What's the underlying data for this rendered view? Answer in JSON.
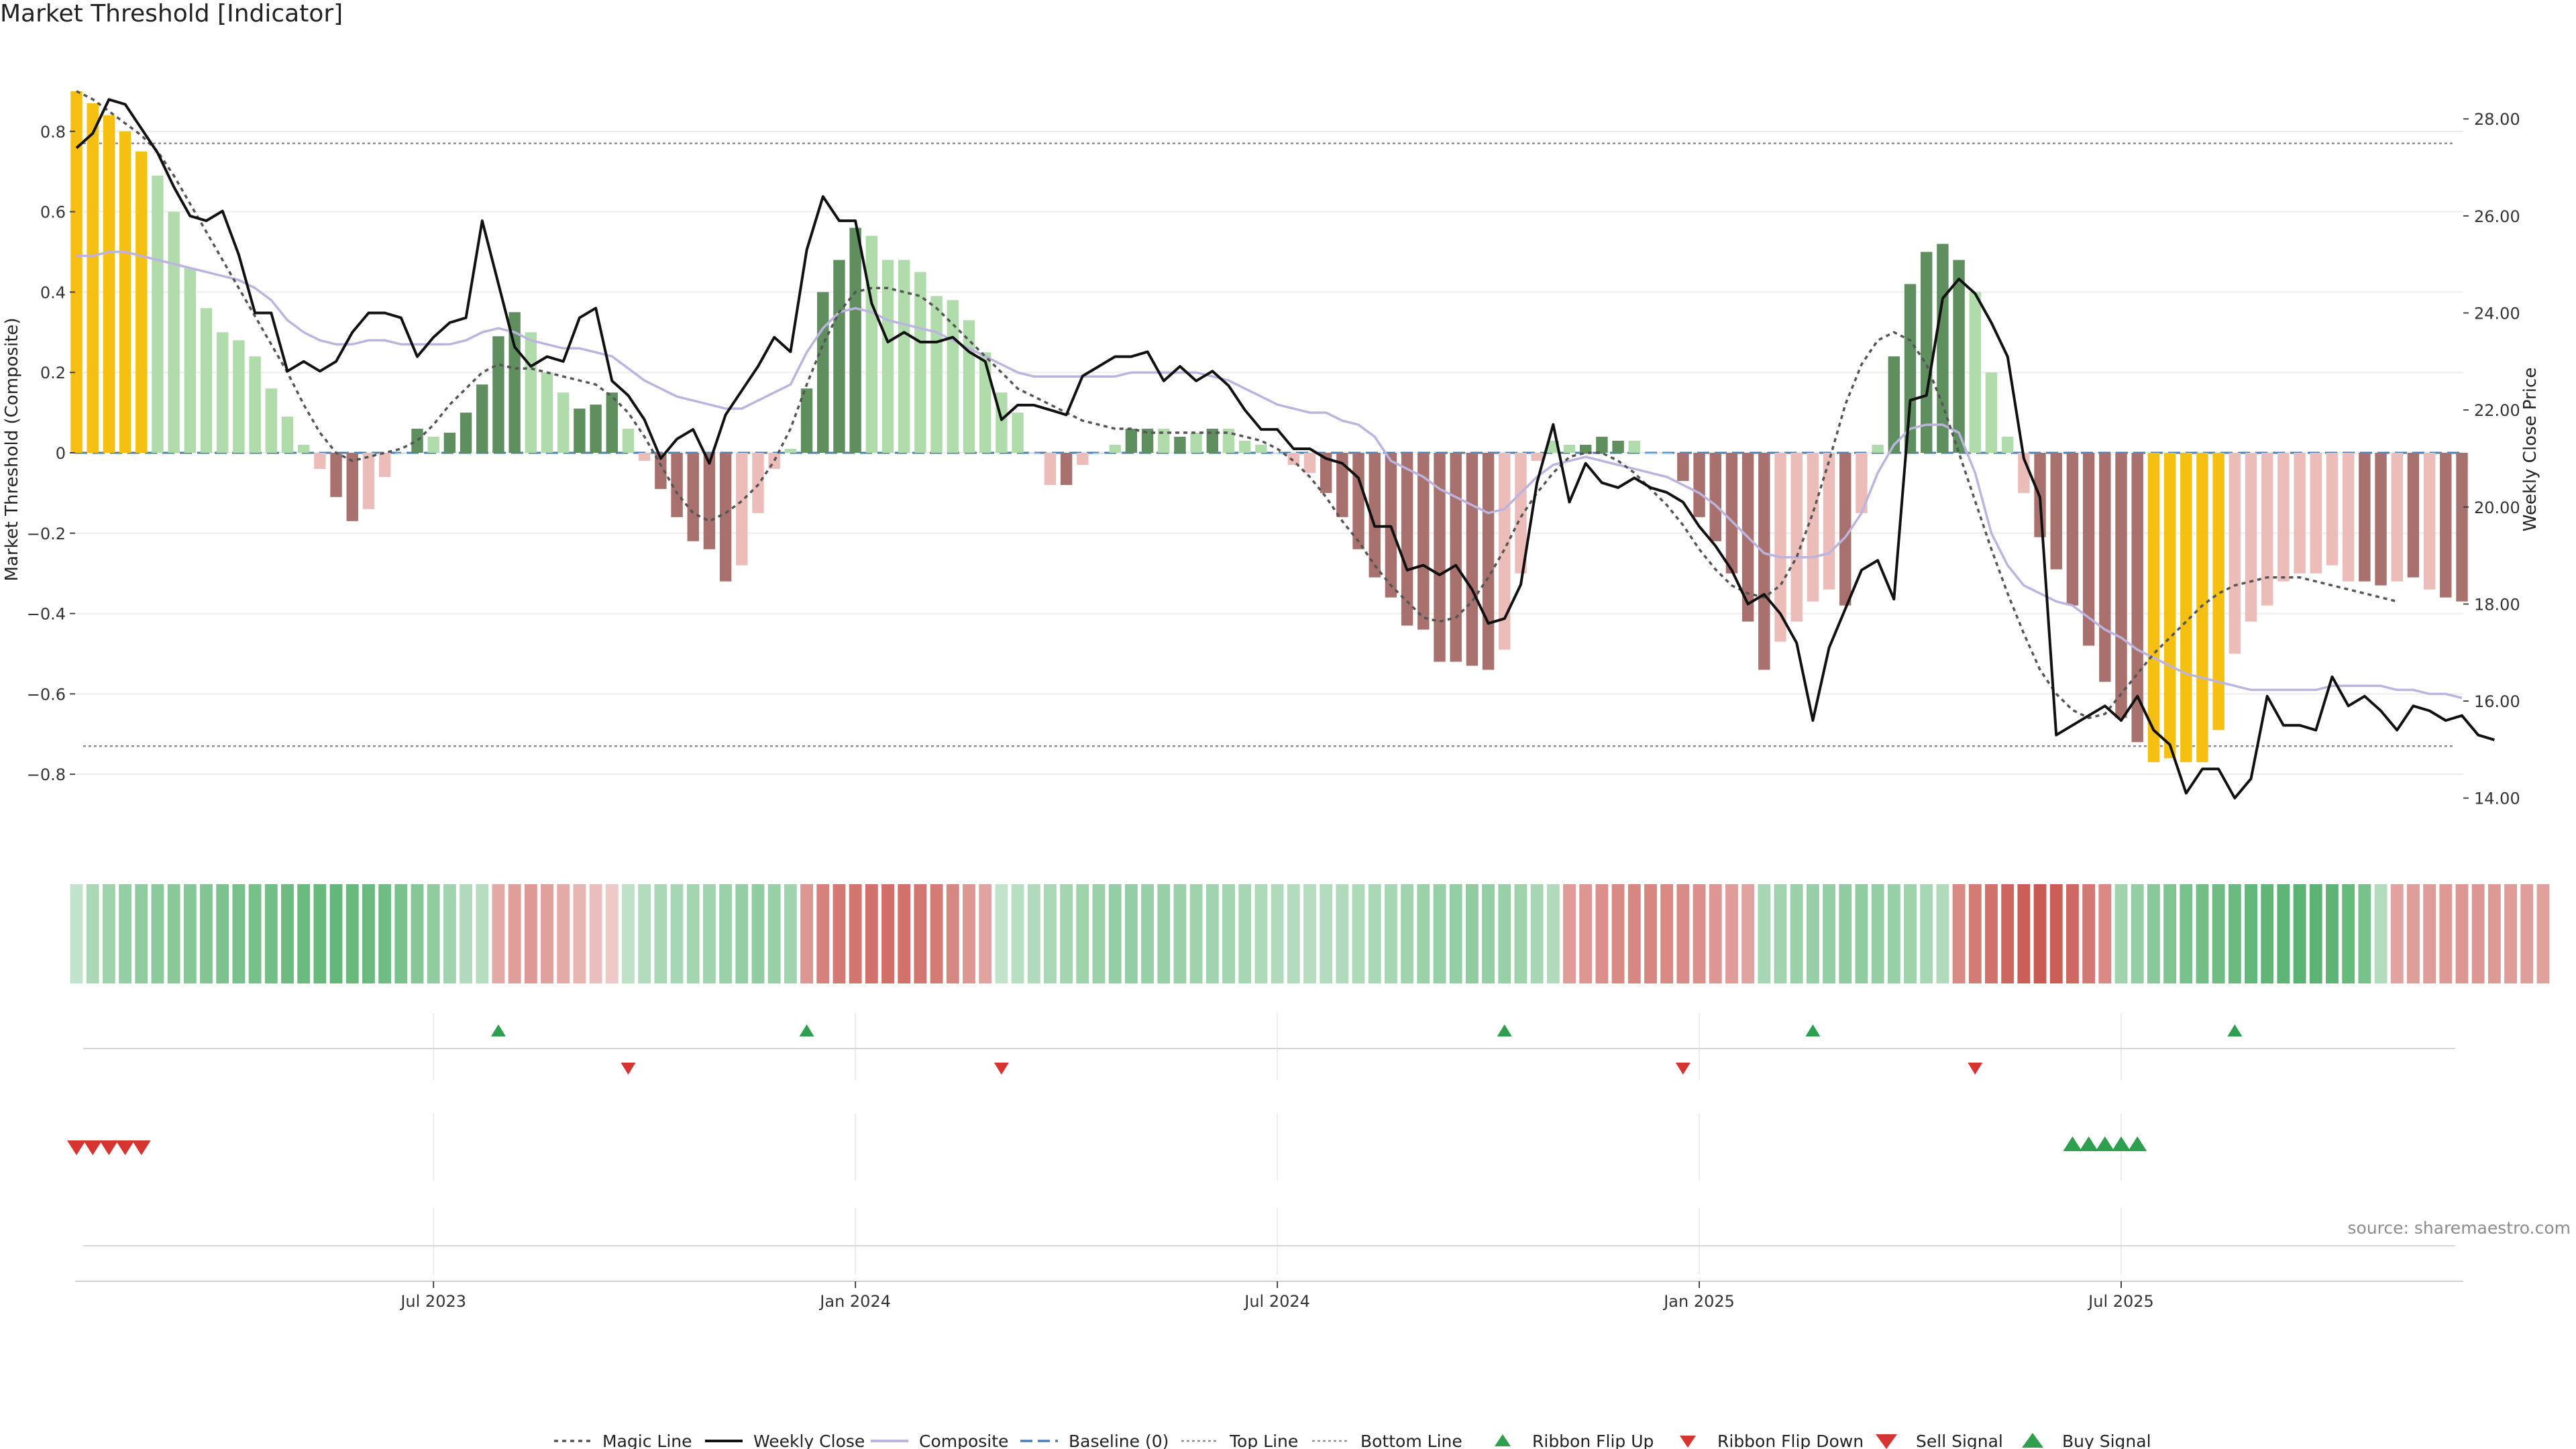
{
  "chart_data": {
    "type": "bar",
    "title": "Market Threshold [Indicator]",
    "ylabel": "Market Threshold (Composite)",
    "y2label": "Weekly Close Price",
    "source": "source: sharemaestro.com",
    "ylim": [
      -0.98,
      1.0
    ],
    "y2lim": [
      13.0,
      29.4
    ],
    "top_line": 0.77,
    "bottom_line": -0.73,
    "yticks": [
      "0.8",
      "0.6",
      "0.4",
      "0.2",
      "0",
      "−0.2",
      "−0.4",
      "−0.6",
      "−0.8"
    ],
    "yticks_values": [
      0.8,
      0.6,
      0.4,
      0.2,
      0,
      -0.2,
      -0.4,
      -0.6,
      -0.8
    ],
    "y2ticks": [
      "28.00",
      "26.00",
      "24.00",
      "22.00",
      "20.00",
      "18.00",
      "16.00",
      "14.00"
    ],
    "y2ticks_values": [
      28,
      26,
      24,
      22,
      20,
      18,
      16,
      14
    ],
    "xticks": [
      "Jul 2023",
      "Jan 2024",
      "Jul 2024",
      "Jan 2025",
      "Jul 2025"
    ],
    "xticks_week": [
      22,
      48,
      74,
      100,
      126
    ],
    "grid": true,
    "legend_position": "bottom-center",
    "colors": {
      "gold": "#f5c011",
      "dark_green": "#5f8f5f",
      "light_green": "#b0dbab",
      "dark_red": "#a8716d",
      "light_red": "#ecbcb8",
      "close": "#111111",
      "composite": "#bcb4e0",
      "magic": "#555555",
      "baseline": "#4a7fb5",
      "guide": "#999999",
      "flip_up": "#2e9e4f",
      "flip_down": "#d63331"
    },
    "bars": [
      0.9,
      0.87,
      0.84,
      0.8,
      0.75,
      0.69,
      0.6,
      0.46,
      0.36,
      0.3,
      0.28,
      0.24,
      0.16,
      0.09,
      0.02,
      -0.04,
      -0.11,
      -0.17,
      -0.14,
      -0.06,
      0.0,
      0.06,
      0.04,
      0.05,
      0.1,
      0.17,
      0.29,
      0.35,
      0.3,
      0.2,
      0.15,
      0.11,
      0.12,
      0.15,
      0.06,
      -0.02,
      -0.09,
      -0.16,
      -0.22,
      -0.24,
      -0.32,
      -0.28,
      -0.15,
      -0.04,
      0.01,
      0.16,
      0.4,
      0.48,
      0.56,
      0.54,
      0.48,
      0.48,
      0.45,
      0.39,
      0.38,
      0.33,
      0.25,
      0.15,
      0.1,
      0.0,
      -0.08,
      -0.08,
      -0.03,
      0.0,
      0.02,
      0.06,
      0.06,
      0.06,
      0.04,
      0.05,
      0.06,
      0.06,
      0.03,
      0.02,
      0.0,
      -0.03,
      -0.05,
      -0.1,
      -0.16,
      -0.24,
      -0.31,
      -0.36,
      -0.43,
      -0.44,
      -0.52,
      -0.52,
      -0.53,
      -0.54,
      -0.49,
      -0.3,
      -0.02,
      0.03,
      0.02,
      0.02,
      0.04,
      0.03,
      0.03,
      0.0,
      0.0,
      -0.07,
      -0.16,
      -0.22,
      -0.3,
      -0.42,
      -0.54,
      -0.47,
      -0.42,
      -0.37,
      -0.34,
      -0.38,
      -0.15,
      0.02,
      0.24,
      0.42,
      0.5,
      0.52,
      0.48,
      0.4,
      0.2,
      0.04,
      -0.1,
      -0.21,
      -0.29,
      -0.38,
      -0.48,
      -0.57,
      -0.66,
      -0.72,
      -0.77,
      -0.76,
      -0.77,
      -0.77,
      -0.69,
      -0.5,
      -0.42,
      -0.38,
      -0.32,
      -0.3,
      -0.3,
      -0.28,
      -0.32,
      -0.32,
      -0.33,
      -0.32,
      -0.31,
      -0.34,
      -0.36,
      -0.37
    ],
    "bar_kinds": [
      "gold",
      "gold",
      "gold",
      "gold",
      "gold",
      "lg",
      "lg",
      "lg",
      "lg",
      "lg",
      "lg",
      "lg",
      "lg",
      "lg",
      "lg",
      "lr",
      "dr",
      "dr",
      "lr",
      "lr",
      "lr",
      "dg",
      "lg",
      "dg",
      "dg",
      "dg",
      "dg",
      "dg",
      "lg",
      "lg",
      "lg",
      "dg",
      "dg",
      "dg",
      "lg",
      "lr",
      "dr",
      "dr",
      "dr",
      "dr",
      "dr",
      "lr",
      "lr",
      "lr",
      "lg",
      "dg",
      "dg",
      "dg",
      "dg",
      "lg",
      "lg",
      "lg",
      "lg",
      "lg",
      "lg",
      "lg",
      "lg",
      "lg",
      "lg",
      "lr",
      "lr",
      "dr",
      "lr",
      "lr",
      "lg",
      "dg",
      "dg",
      "lg",
      "dg",
      "lg",
      "dg",
      "lg",
      "lg",
      "lg",
      "lr",
      "lr",
      "lr",
      "dr",
      "dr",
      "dr",
      "dr",
      "dr",
      "dr",
      "dr",
      "dr",
      "dr",
      "dr",
      "dr",
      "lr",
      "lr",
      "lr",
      "lg",
      "lg",
      "dg",
      "dg",
      "dg",
      "lg",
      "lr",
      "lr",
      "dr",
      "dr",
      "dr",
      "dr",
      "dr",
      "dr",
      "lr",
      "lr",
      "lr",
      "lr",
      "dr",
      "lr",
      "lg",
      "dg",
      "dg",
      "dg",
      "dg",
      "dg",
      "lg",
      "lg",
      "lg",
      "lr",
      "dr",
      "dr",
      "dr",
      "dr",
      "dr",
      "dr",
      "dr",
      "gold",
      "gold",
      "gold",
      "gold",
      "gold",
      "lr",
      "lr",
      "lr",
      "lr",
      "lr",
      "lr",
      "lr",
      "lr",
      "dr",
      "dr",
      "lr",
      "dr",
      "lr",
      "dr",
      "dr",
      "dr"
    ],
    "close": [
      27.4,
      27.7,
      28.4,
      28.3,
      27.8,
      27.3,
      26.6,
      26.0,
      25.9,
      26.1,
      25.2,
      24.0,
      24.0,
      22.8,
      23.0,
      22.8,
      23.0,
      23.6,
      24.0,
      24.0,
      23.9,
      23.1,
      23.5,
      23.8,
      23.9,
      25.9,
      24.6,
      23.3,
      22.9,
      23.1,
      23.0,
      23.9,
      24.1,
      22.6,
      22.3,
      21.8,
      21.0,
      21.4,
      21.6,
      20.9,
      21.9,
      22.4,
      22.9,
      23.5,
      23.2,
      25.3,
      26.4,
      25.9,
      25.9,
      24.2,
      23.4,
      23.6,
      23.4,
      23.4,
      23.5,
      23.2,
      23.0,
      21.8,
      22.1,
      22.1,
      22.0,
      21.9,
      22.7,
      22.9,
      23.1,
      23.1,
      23.2,
      22.6,
      22.9,
      22.6,
      22.8,
      22.5,
      22.0,
      21.6,
      21.6,
      21.2,
      21.2,
      21.0,
      20.9,
      20.6,
      19.6,
      19.6,
      18.7,
      18.8,
      18.6,
      18.8,
      18.3,
      17.6,
      17.7,
      18.4,
      20.5,
      21.7,
      20.1,
      20.9,
      20.5,
      20.4,
      20.6,
      20.4,
      20.3,
      20.1,
      19.6,
      19.2,
      18.7,
      18.0,
      18.2,
      17.8,
      17.2,
      15.6,
      17.1,
      17.9,
      18.7,
      18.9,
      18.1,
      22.2,
      22.3,
      24.3,
      24.7,
      24.4,
      23.8,
      23.1,
      21.0,
      20.2,
      15.3,
      15.5,
      15.7,
      15.9,
      15.6,
      16.1,
      15.4,
      15.1,
      14.1,
      14.6,
      14.6,
      14.0,
      14.4,
      16.1,
      15.5,
      15.5,
      15.4,
      16.5,
      15.9,
      16.1,
      15.8,
      15.4,
      15.9,
      15.8,
      15.6,
      15.7,
      15.3,
      15.2
    ],
    "composite": [
      0.49,
      0.49,
      0.5,
      0.5,
      0.49,
      0.48,
      0.47,
      0.46,
      0.45,
      0.44,
      0.43,
      0.41,
      0.38,
      0.33,
      0.3,
      0.28,
      0.27,
      0.27,
      0.28,
      0.28,
      0.27,
      0.27,
      0.27,
      0.27,
      0.28,
      0.3,
      0.31,
      0.3,
      0.28,
      0.27,
      0.26,
      0.26,
      0.25,
      0.24,
      0.21,
      0.18,
      0.16,
      0.14,
      0.13,
      0.12,
      0.11,
      0.11,
      0.13,
      0.15,
      0.17,
      0.25,
      0.31,
      0.35,
      0.36,
      0.35,
      0.33,
      0.32,
      0.31,
      0.3,
      0.28,
      0.26,
      0.24,
      0.22,
      0.2,
      0.19,
      0.19,
      0.19,
      0.19,
      0.19,
      0.19,
      0.2,
      0.2,
      0.2,
      0.2,
      0.2,
      0.19,
      0.18,
      0.16,
      0.14,
      0.12,
      0.11,
      0.1,
      0.1,
      0.08,
      0.07,
      0.04,
      -0.02,
      -0.04,
      -0.06,
      -0.09,
      -0.11,
      -0.13,
      -0.15,
      -0.14,
      -0.1,
      -0.06,
      -0.03,
      -0.02,
      -0.01,
      -0.02,
      -0.03,
      -0.04,
      -0.05,
      -0.06,
      -0.08,
      -0.1,
      -0.13,
      -0.17,
      -0.21,
      -0.25,
      -0.26,
      -0.26,
      -0.26,
      -0.25,
      -0.21,
      -0.15,
      -0.05,
      0.02,
      0.06,
      0.07,
      0.07,
      0.05,
      -0.05,
      -0.2,
      -0.28,
      -0.33,
      -0.35,
      -0.37,
      -0.38,
      -0.41,
      -0.44,
      -0.46,
      -0.49,
      -0.51,
      -0.53,
      -0.55,
      -0.56,
      -0.57,
      -0.58,
      -0.59,
      -0.59,
      -0.59,
      -0.59,
      -0.59,
      -0.58,
      -0.58,
      -0.58,
      -0.58,
      -0.59,
      -0.59,
      -0.6,
      -0.6,
      -0.61
    ],
    "magic": [
      0.9,
      0.88,
      0.85,
      0.82,
      0.79,
      0.75,
      0.69,
      0.62,
      0.55,
      0.48,
      0.41,
      0.34,
      0.27,
      0.2,
      0.12,
      0.05,
      0.0,
      -0.02,
      -0.01,
      0.0,
      0.01,
      0.03,
      0.07,
      0.12,
      0.16,
      0.2,
      0.22,
      0.21,
      0.21,
      0.2,
      0.19,
      0.18,
      0.17,
      0.14,
      0.1,
      0.04,
      -0.03,
      -0.1,
      -0.15,
      -0.17,
      -0.15,
      -0.12,
      -0.08,
      -0.02,
      0.06,
      0.17,
      0.27,
      0.35,
      0.4,
      0.41,
      0.41,
      0.4,
      0.39,
      0.36,
      0.32,
      0.28,
      0.24,
      0.2,
      0.16,
      0.14,
      0.12,
      0.1,
      0.08,
      0.07,
      0.06,
      0.06,
      0.05,
      0.05,
      0.05,
      0.05,
      0.05,
      0.05,
      0.04,
      0.03,
      0.01,
      -0.02,
      -0.06,
      -0.11,
      -0.17,
      -0.22,
      -0.28,
      -0.33,
      -0.37,
      -0.41,
      -0.42,
      -0.41,
      -0.37,
      -0.31,
      -0.24,
      -0.16,
      -0.1,
      -0.05,
      -0.01,
      0.0,
      0.0,
      -0.02,
      -0.05,
      -0.09,
      -0.13,
      -0.18,
      -0.24,
      -0.29,
      -0.33,
      -0.35,
      -0.36,
      -0.33,
      -0.26,
      -0.15,
      -0.02,
      0.12,
      0.22,
      0.28,
      0.3,
      0.28,
      0.22,
      0.12,
      0.0,
      -0.12,
      -0.24,
      -0.35,
      -0.45,
      -0.54,
      -0.6,
      -0.64,
      -0.66,
      -0.65,
      -0.6,
      -0.55,
      -0.5,
      -0.46,
      -0.42,
      -0.38,
      -0.35,
      -0.33,
      -0.32,
      -0.31,
      -0.31,
      -0.31,
      -0.32,
      -0.33,
      -0.34,
      -0.35,
      -0.36,
      -0.37
    ],
    "ribbon": [
      0.12,
      0.28,
      0.36,
      0.42,
      0.46,
      0.48,
      0.5,
      0.52,
      0.55,
      0.58,
      0.6,
      0.62,
      0.65,
      0.68,
      0.7,
      0.72,
      0.74,
      0.72,
      0.7,
      0.66,
      0.6,
      0.52,
      0.44,
      0.34,
      0.24,
      0.2,
      -0.36,
      -0.44,
      -0.48,
      -0.42,
      -0.35,
      -0.28,
      -0.2,
      -0.12,
      0.14,
      0.22,
      0.28,
      0.3,
      0.32,
      0.34,
      0.38,
      0.42,
      0.44,
      0.4,
      0.34,
      -0.5,
      -0.66,
      -0.72,
      -0.75,
      -0.78,
      -0.8,
      -0.78,
      -0.74,
      -0.7,
      -0.62,
      -0.5,
      -0.4,
      0.12,
      0.18,
      0.24,
      0.28,
      0.32,
      0.36,
      0.38,
      0.42,
      0.42,
      0.4,
      0.4,
      0.38,
      0.36,
      0.34,
      0.32,
      0.3,
      0.26,
      0.24,
      0.22,
      0.2,
      0.22,
      0.24,
      0.26,
      0.28,
      0.3,
      0.34,
      0.38,
      0.4,
      0.42,
      0.44,
      0.42,
      0.4,
      0.36,
      0.3,
      0.24,
      -0.46,
      -0.5,
      -0.55,
      -0.6,
      -0.62,
      -0.62,
      -0.6,
      -0.58,
      -0.55,
      -0.5,
      -0.45,
      -0.4,
      0.3,
      0.34,
      0.38,
      0.4,
      0.42,
      0.44,
      0.46,
      0.42,
      0.4,
      0.36,
      0.3,
      0.24,
      -0.6,
      -0.7,
      -0.78,
      -0.86,
      -0.92,
      -0.95,
      -0.92,
      -0.84,
      -0.72,
      -0.6,
      0.34,
      0.42,
      0.5,
      0.56,
      0.6,
      0.64,
      0.66,
      0.7,
      0.74,
      0.76,
      0.78,
      0.8,
      0.8,
      0.78,
      0.72,
      0.6,
      0.22,
      -0.4,
      -0.44,
      -0.46,
      -0.48,
      -0.5,
      -0.5,
      -0.48,
      -0.46,
      -0.44,
      -0.42
    ],
    "ribbon_flip_up_weeks": [
      26,
      45,
      88,
      107,
      133
    ],
    "ribbon_flip_down_weeks": [
      34,
      57,
      99,
      117
    ],
    "sell_signal_weeks": [
      0,
      1,
      2,
      3,
      4
    ],
    "buy_signal_weeks": [
      123,
      124,
      125,
      126,
      127
    ],
    "legend": [
      "Magic Line",
      "Weekly Close",
      "Composite",
      "Baseline (0)",
      "Top Line",
      "Bottom Line",
      "Ribbon Flip Up",
      "Ribbon Flip Down",
      "Sell Signal",
      "Buy Signal"
    ]
  }
}
